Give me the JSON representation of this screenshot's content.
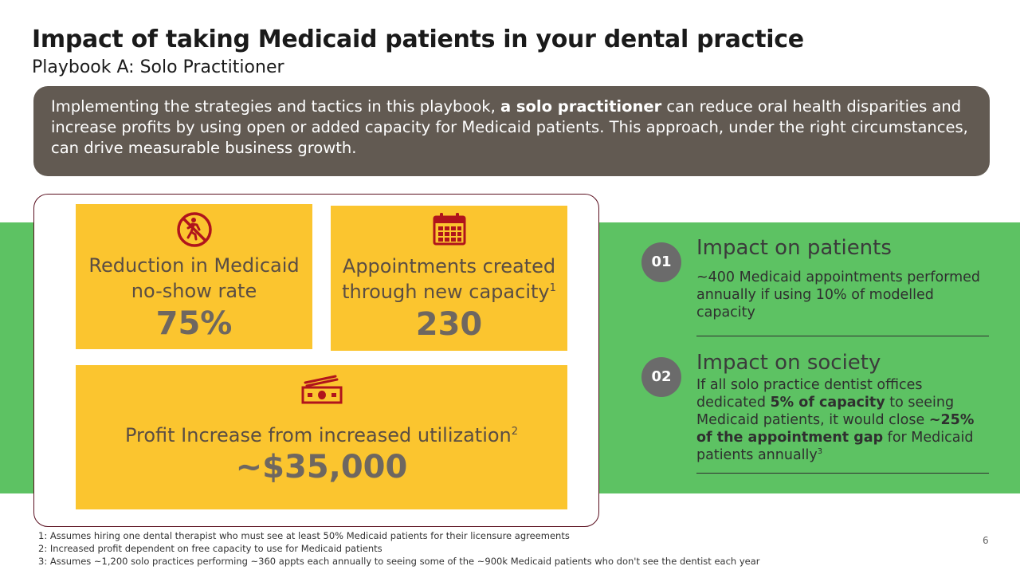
{
  "header": {
    "title": "Impact of taking Medicaid patients in your dental practice",
    "subtitle": "Playbook A: Solo Practitioner"
  },
  "summary": {
    "pre": "Implementing the strategies and tactics in this playbook, ",
    "bold": "a solo practitioner",
    "post": " can reduce oral health disparities and increase profits by using open or added capacity for Medicaid patients. This approach, under the right circumstances, can drive measurable business growth."
  },
  "stats": [
    {
      "icon": "no-walking-icon",
      "label_line1": "Reduction in Medicaid",
      "label_line2": "no-show rate",
      "sup": "",
      "value": "75%"
    },
    {
      "icon": "calendar-icon",
      "label_line1": "Appointments created",
      "label_line2": "through new capacity",
      "sup": "1",
      "value": "230"
    },
    {
      "icon": "cash-icon",
      "label_line1": "Profit Increase from increased utilization",
      "label_line2": "",
      "sup": "2",
      "value": "~$35,000"
    }
  ],
  "impacts": [
    {
      "number": "01",
      "heading": "Impact on patients",
      "body": "~400 Medicaid appointments performed annually if using 10% of modelled capacity"
    },
    {
      "number": "02",
      "heading": "Impact on society",
      "body_p1": "If all solo practice dentist offices dedicated ",
      "body_b1": "5% of capacity",
      "body_p2": " to seeing Medicaid patients, it would close ",
      "body_b2": "~25% of the appointment gap",
      "body_p3": " for Medicaid patients annually",
      "sup": "3"
    }
  ],
  "footnotes": [
    "1: Assumes hiring one dental therapist who must see at least 50% Medicaid patients for their licensure agreements",
    "2: Increased profit dependent on free capacity to use for Medicaid patients",
    "3: Assumes ~1,200 solo practices performing ~360 appts each annually to seeing some of the ~900k Medicaid patients who don't see the dentist each year"
  ],
  "page_number": "6",
  "colors": {
    "accent_yellow": "#fbc52f",
    "band_green": "#5dc263",
    "summary_gray": "#625a52",
    "icon_red": "#b0141c"
  }
}
